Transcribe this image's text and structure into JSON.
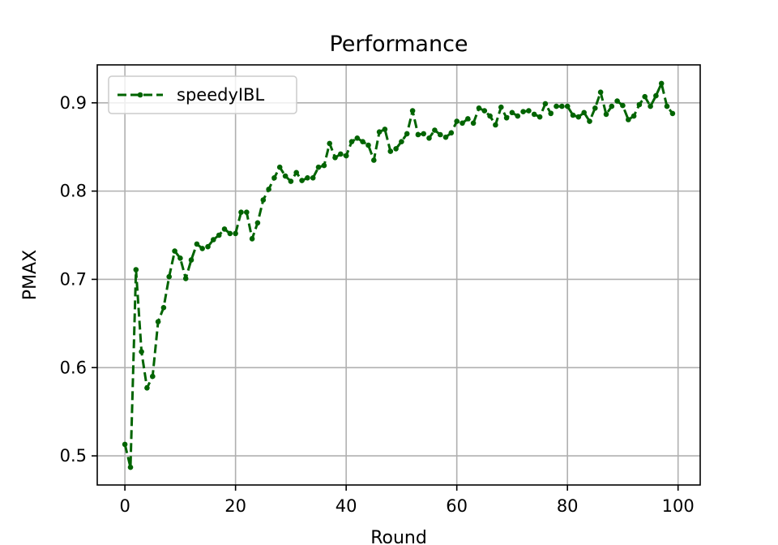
{
  "chart_data": {
    "type": "line",
    "title": "Performance",
    "xlabel": "Round",
    "ylabel": "PMAX",
    "xlim": [
      -5,
      104
    ],
    "ylim": [
      0.467,
      0.943
    ],
    "x_ticks": [
      0,
      20,
      40,
      60,
      80,
      100
    ],
    "y_ticks": [
      0.5,
      0.6,
      0.7,
      0.8,
      0.9
    ],
    "x_tick_labels": [
      "0",
      "20",
      "40",
      "60",
      "80",
      "100"
    ],
    "y_tick_labels": [
      "0.5",
      "0.6",
      "0.7",
      "0.8",
      "0.9"
    ],
    "grid": true,
    "legend_position": "upper-left",
    "series": [
      {
        "name": "speedyIBL",
        "color": "#006400",
        "line_style": "dashed",
        "marker": "circle",
        "x": [
          0,
          1,
          2,
          3,
          4,
          5,
          6,
          7,
          8,
          9,
          10,
          11,
          12,
          13,
          14,
          15,
          16,
          17,
          18,
          19,
          20,
          21,
          22,
          23,
          24,
          25,
          26,
          27,
          28,
          29,
          30,
          31,
          32,
          33,
          34,
          35,
          36,
          37,
          38,
          39,
          40,
          41,
          42,
          43,
          44,
          45,
          46,
          47,
          48,
          49,
          50,
          51,
          52,
          53,
          54,
          55,
          56,
          57,
          58,
          59,
          60,
          61,
          62,
          63,
          64,
          65,
          66,
          67,
          68,
          69,
          70,
          71,
          72,
          73,
          74,
          75,
          76,
          77,
          78,
          79,
          80,
          81,
          82,
          83,
          84,
          85,
          86,
          87,
          88,
          89,
          90,
          91,
          92,
          93,
          94,
          95,
          96,
          97,
          98,
          99
        ],
        "y": [
          0.513,
          0.487,
          0.711,
          0.618,
          0.577,
          0.59,
          0.652,
          0.668,
          0.703,
          0.732,
          0.724,
          0.701,
          0.722,
          0.74,
          0.735,
          0.737,
          0.745,
          0.75,
          0.757,
          0.752,
          0.752,
          0.776,
          0.776,
          0.746,
          0.764,
          0.79,
          0.802,
          0.815,
          0.827,
          0.817,
          0.811,
          0.821,
          0.812,
          0.815,
          0.815,
          0.827,
          0.829,
          0.854,
          0.838,
          0.842,
          0.84,
          0.856,
          0.86,
          0.856,
          0.852,
          0.835,
          0.867,
          0.87,
          0.845,
          0.848,
          0.856,
          0.865,
          0.891,
          0.864,
          0.865,
          0.86,
          0.869,
          0.864,
          0.861,
          0.866,
          0.879,
          0.877,
          0.882,
          0.877,
          0.894,
          0.891,
          0.885,
          0.875,
          0.895,
          0.883,
          0.889,
          0.885,
          0.89,
          0.891,
          0.887,
          0.884,
          0.899,
          0.888,
          0.896,
          0.896,
          0.896,
          0.886,
          0.884,
          0.889,
          0.879,
          0.894,
          0.912,
          0.887,
          0.896,
          0.902,
          0.897,
          0.881,
          0.885,
          0.898,
          0.907,
          0.896,
          0.908,
          0.922,
          0.896,
          0.888
        ]
      }
    ]
  }
}
